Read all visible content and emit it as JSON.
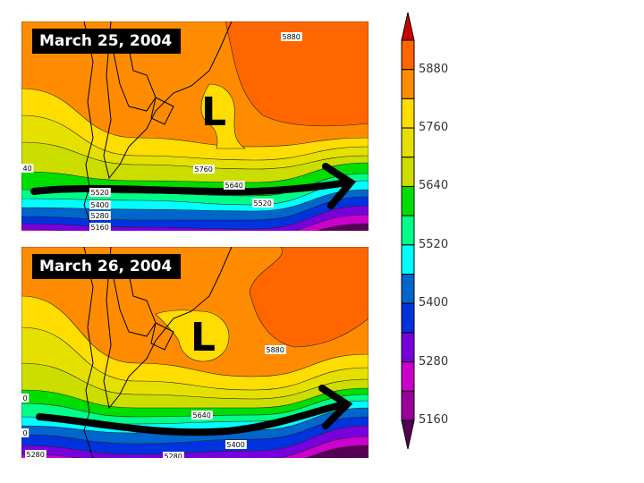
{
  "panels": [
    {
      "title": "March 25, 2004",
      "low_marker": "L",
      "contour_labels": [
        "5880",
        "5760",
        "5640",
        "5520",
        "5400",
        "5280",
        "5160",
        "40",
        "5520"
      ]
    },
    {
      "title": "March 26, 2004",
      "low_marker": "L",
      "contour_labels": [
        "5880",
        "5640",
        "5400",
        "5280",
        "5280",
        "0",
        "0"
      ]
    }
  ],
  "colorbar": {
    "labels": [
      "5880",
      "5760",
      "5640",
      "5520",
      "5400",
      "5280",
      "5160"
    ],
    "colors": [
      "#cc0000",
      "#ff6600",
      "#ff8c00",
      "#ffdd00",
      "#e6e000",
      "#ccdd00",
      "#00dd00",
      "#00ff88",
      "#00ffff",
      "#0066cc",
      "#0033dd",
      "#7700dd",
      "#cc00cc",
      "#990099",
      "#550055"
    ]
  }
}
